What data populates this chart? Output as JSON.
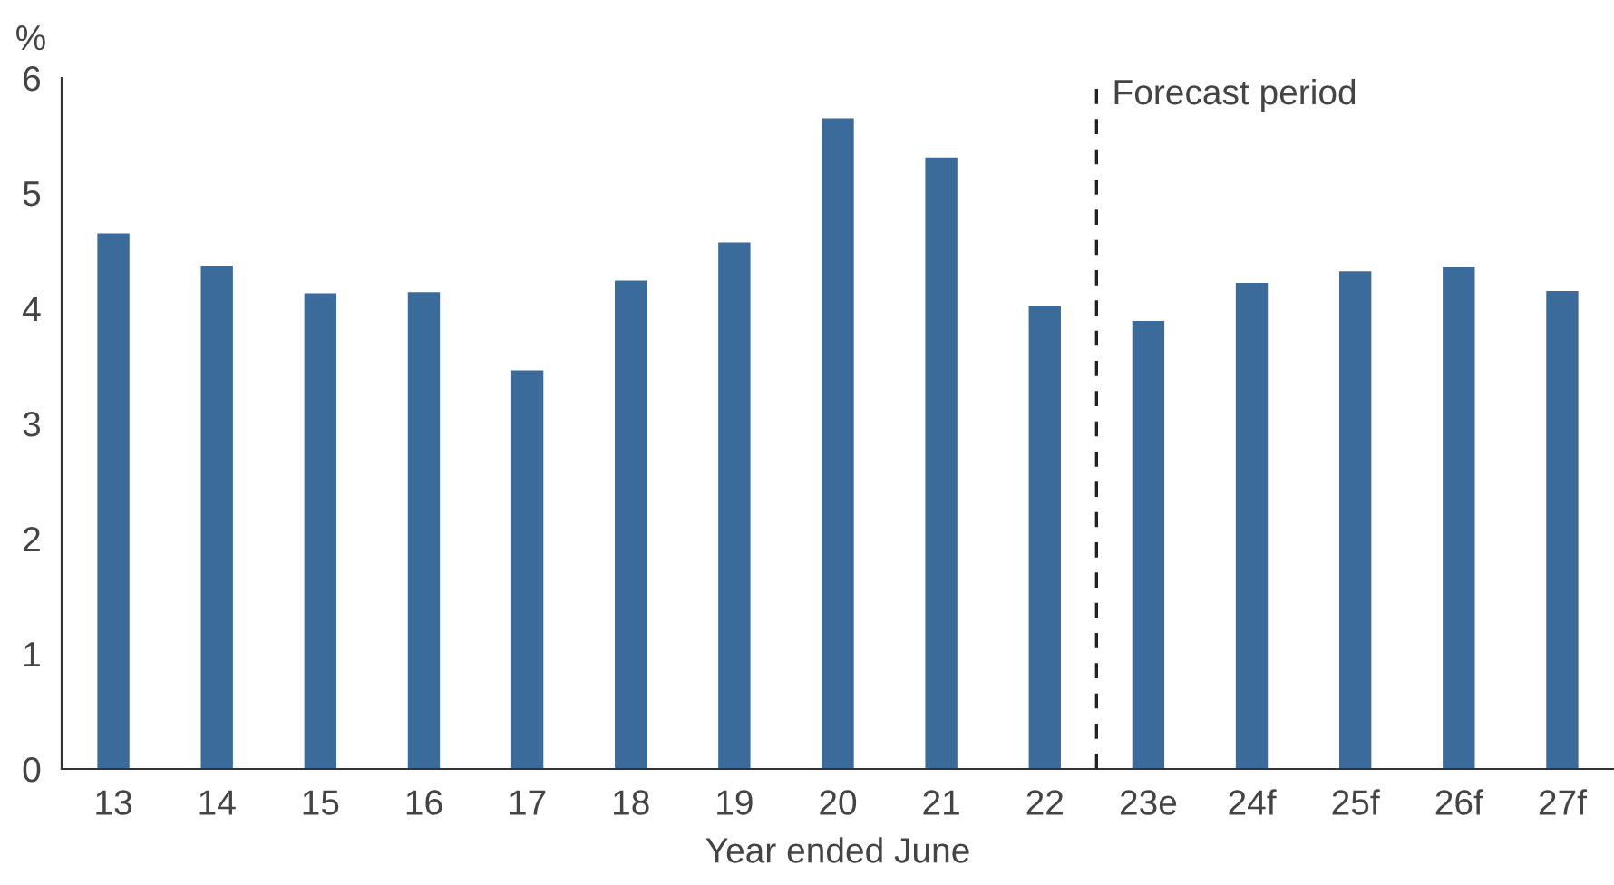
{
  "chart_data": {
    "type": "bar",
    "categories": [
      "13",
      "14",
      "15",
      "16",
      "17",
      "18",
      "19",
      "20",
      "21",
      "22",
      "23e",
      "24f",
      "25f",
      "26f",
      "27f"
    ],
    "values": [
      4.65,
      4.37,
      4.13,
      4.14,
      3.46,
      4.24,
      4.57,
      5.65,
      5.31,
      4.02,
      3.89,
      4.22,
      4.32,
      4.36,
      4.15
    ],
    "color": "#3a6b9a",
    "xlabel": "Year ended June",
    "ylabel": "%",
    "ylim": [
      0,
      6
    ],
    "yticks": [
      0,
      1,
      2,
      3,
      4,
      5,
      6
    ],
    "grid": false,
    "legend": false,
    "annotations": [
      "Forecast period"
    ]
  }
}
